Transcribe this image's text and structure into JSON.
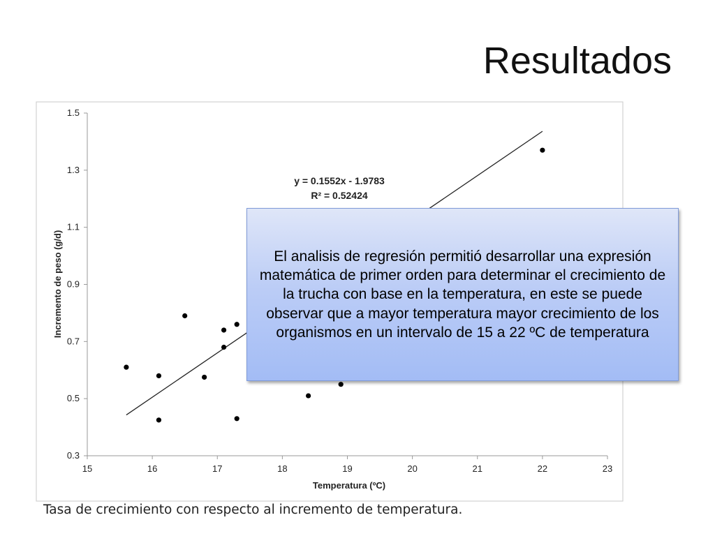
{
  "slide": {
    "title": "Resultados",
    "caption": "Tasa de crecimiento con respecto al incremento de temperatura.",
    "callout_text": "El analisis de regresión permitió desarrollar una expresión matemática de primer orden para determinar el crecimiento de la trucha con base en la temperatura, en este se puede observar que a mayor temperatura mayor crecimiento de los organismos en un intervalo de 15 a 22 ºC de temperatura"
  },
  "chart_data": {
    "type": "scatter",
    "title": "",
    "xlabel": "Temperatura (ºC)",
    "ylabel": "Incremento de peso (g/d)",
    "xlim": [
      15,
      23
    ],
    "ylim": [
      0.3,
      1.5
    ],
    "x_ticks": [
      15,
      16,
      17,
      18,
      19,
      20,
      21,
      22,
      23
    ],
    "y_ticks": [
      0.3,
      0.5,
      0.7,
      0.9,
      1.1,
      1.3,
      1.5
    ],
    "x_tick_labels": [
      "15",
      "16",
      "17",
      "18",
      "19",
      "20",
      "21",
      "22",
      "23"
    ],
    "y_tick_labels": [
      "0.3",
      "0.5",
      "0.7",
      "0.9",
      "1.1",
      "1.3",
      "1.5"
    ],
    "grid": false,
    "points": [
      {
        "x": 15.6,
        "y": 0.61
      },
      {
        "x": 16.1,
        "y": 0.58
      },
      {
        "x": 16.1,
        "y": 0.425
      },
      {
        "x": 16.5,
        "y": 0.79
      },
      {
        "x": 16.8,
        "y": 0.575
      },
      {
        "x": 17.1,
        "y": 0.74
      },
      {
        "x": 17.1,
        "y": 0.68
      },
      {
        "x": 17.3,
        "y": 0.76
      },
      {
        "x": 17.3,
        "y": 0.43
      },
      {
        "x": 18.4,
        "y": 0.51
      },
      {
        "x": 18.9,
        "y": 0.55
      },
      {
        "x": 22.0,
        "y": 1.37
      }
    ],
    "trendline": {
      "slope": 0.1552,
      "intercept": -1.9783,
      "x_range": [
        15.6,
        22.0
      ],
      "equation_label": "y = 0.1552x - 1.9783",
      "r2_label": "R² = 0.52424"
    },
    "colors": {
      "points": "#000000",
      "trendline": "#222222",
      "axis": "#999999"
    }
  }
}
